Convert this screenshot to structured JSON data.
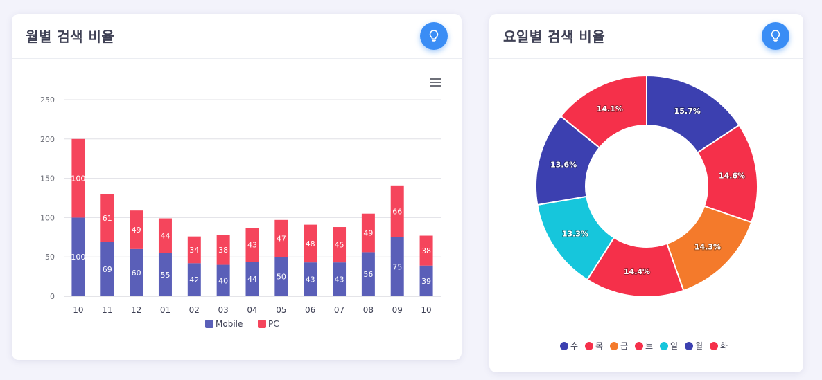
{
  "monthly_card": {
    "title": "월별 검색 비율",
    "hint_icon": "lightbulb-icon",
    "menu_icon": "hamburger-menu-icon"
  },
  "weekday_card": {
    "title": "요일별 검색 비율",
    "hint_icon": "lightbulb-icon"
  },
  "colors": {
    "mobile": "#5a5fb8",
    "pc": "#f5455c",
    "accent": "#3a8df5"
  },
  "chart_data": [
    {
      "type": "bar",
      "stacked": true,
      "categories": [
        "10",
        "11",
        "12",
        "01",
        "02",
        "03",
        "04",
        "05",
        "06",
        "07",
        "08",
        "09",
        "10"
      ],
      "series": [
        {
          "name": "Mobile",
          "color": "#5a5fb8",
          "values": [
            100,
            69,
            60,
            55,
            42,
            40,
            44,
            50,
            43,
            43,
            56,
            75,
            39
          ]
        },
        {
          "name": "PC",
          "color": "#f5455c",
          "values": [
            100,
            61,
            49,
            44,
            34,
            38,
            43,
            47,
            48,
            45,
            49,
            66,
            38
          ]
        }
      ],
      "yticks": [
        "0",
        "50",
        "100",
        "150",
        "200",
        "250"
      ],
      "ylim": [
        0,
        250
      ],
      "grid": true,
      "legend": "bottom-center",
      "data_labels": true
    },
    {
      "type": "pie",
      "donut": true,
      "labels": [
        "수",
        "목",
        "금",
        "토",
        "일",
        "월",
        "화"
      ],
      "values": [
        15.7,
        14.6,
        14.3,
        14.4,
        13.3,
        13.6,
        14.1
      ],
      "display_labels": [
        "15.7%",
        "14.6%",
        "14.3%",
        "14.4%",
        "13.3%",
        "13.6%",
        "14.1%"
      ],
      "colors": [
        "#3c40b0",
        "#f5304a",
        "#f47a2b",
        "#f5304a",
        "#16c6dc",
        "#3c40b0",
        "#f5304a"
      ],
      "legend": "bottom-center"
    }
  ]
}
